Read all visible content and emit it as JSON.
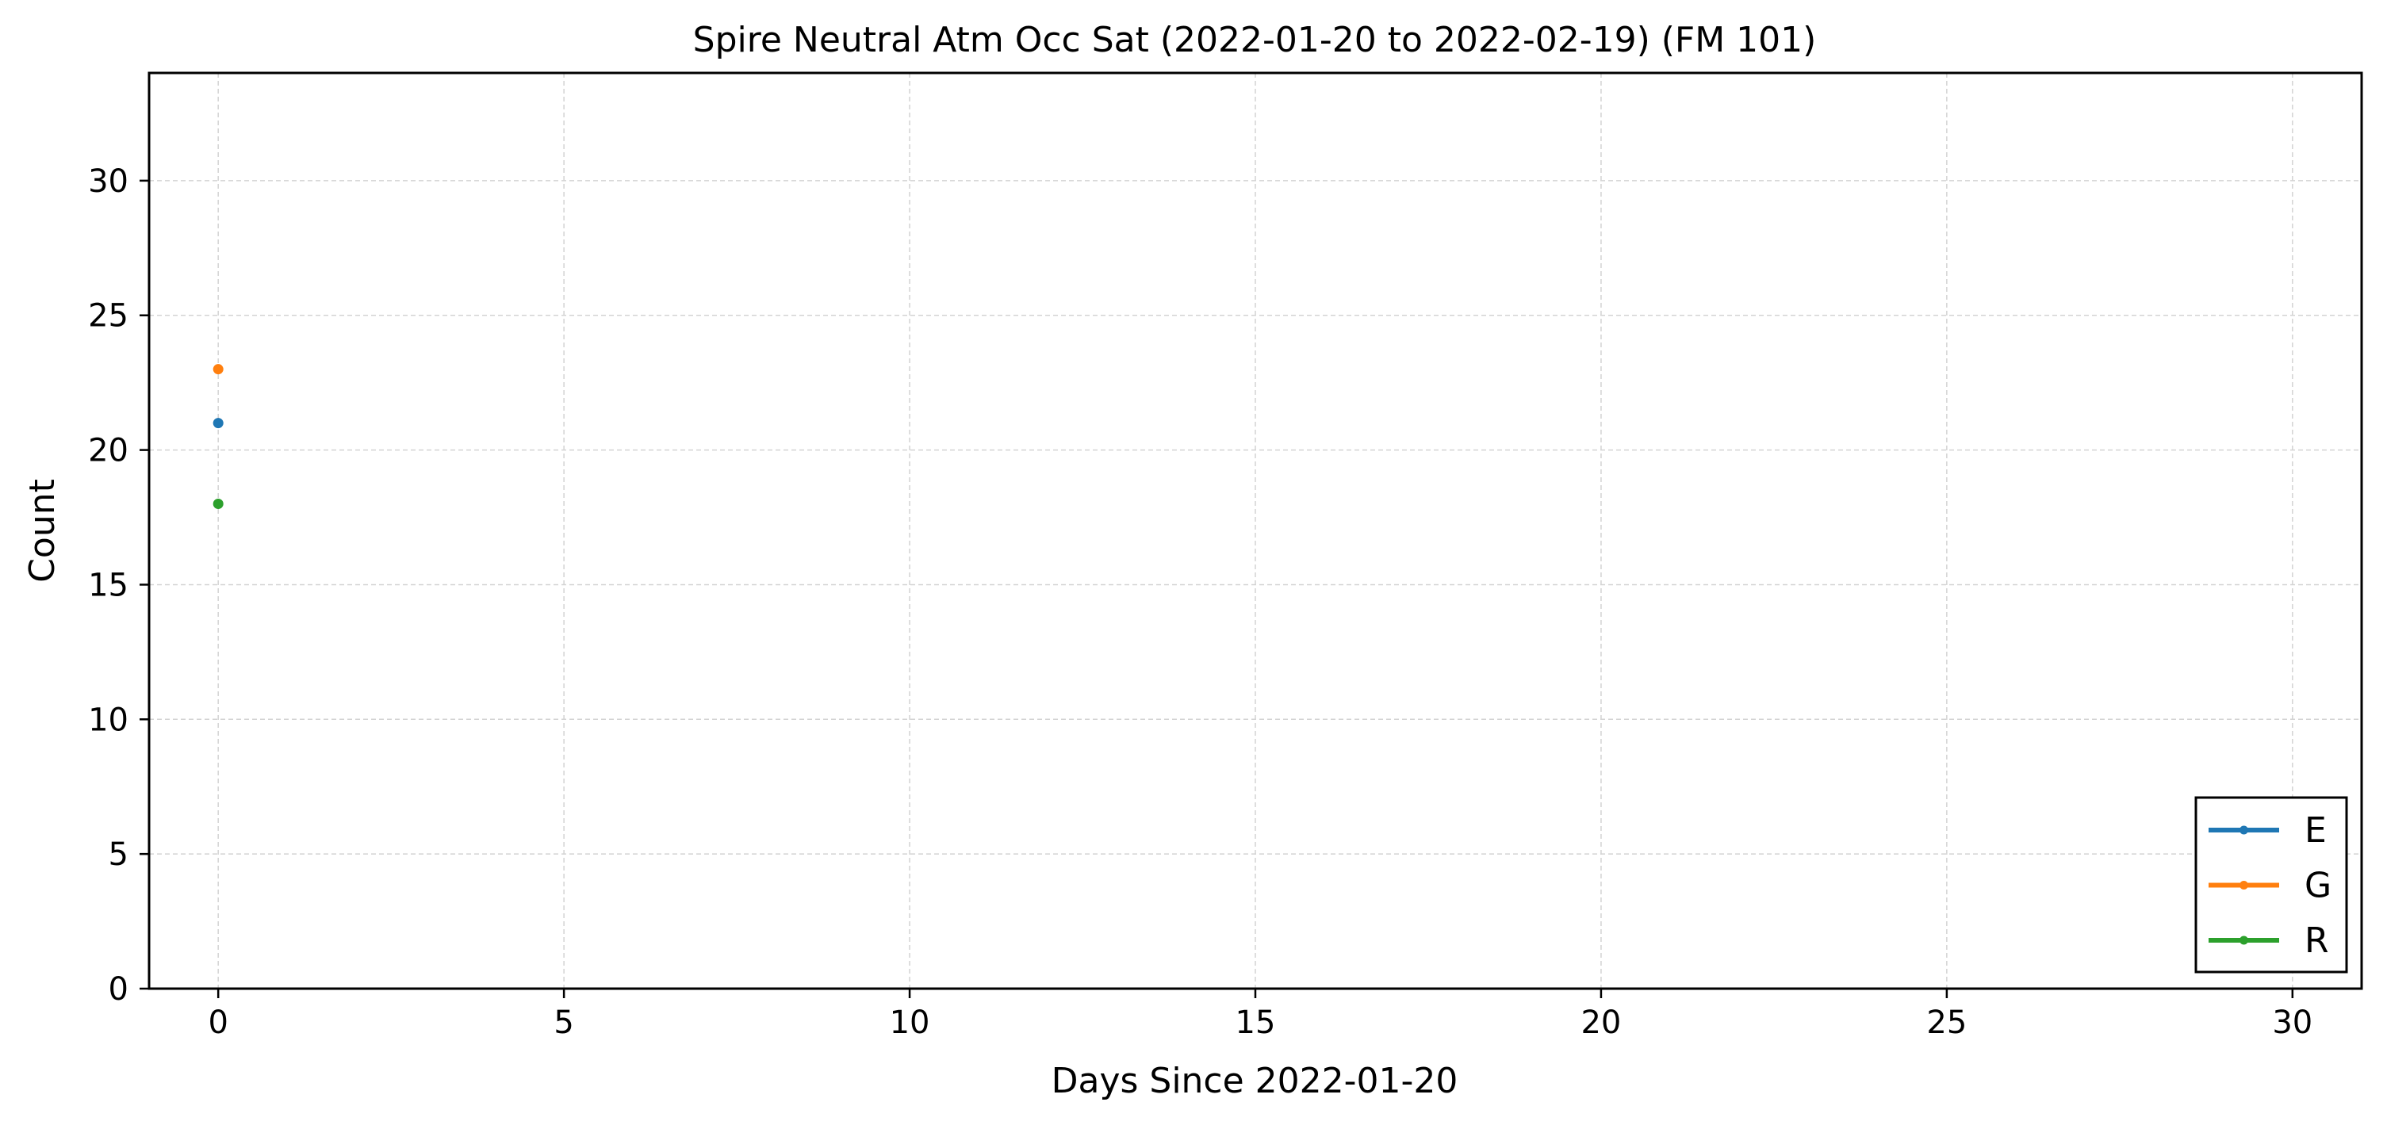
{
  "chart_data": {
    "type": "scatter",
    "title": "Spire Neutral Atm Occ Sat (2022-01-20 to 2022-02-19) (FM 101)",
    "xlabel": "Days Since 2022-01-20",
    "ylabel": "Count",
    "xlim": [
      -1,
      31
    ],
    "ylim": [
      0,
      34
    ],
    "xticks": [
      0,
      5,
      10,
      15,
      20,
      25,
      30
    ],
    "yticks": [
      0,
      5,
      10,
      15,
      20,
      25,
      30
    ],
    "grid": true,
    "legend_position": "lower-right",
    "series": [
      {
        "name": "E",
        "color": "#1f77b4",
        "x": [
          0
        ],
        "y": [
          21
        ]
      },
      {
        "name": "G",
        "color": "#ff7f0e",
        "x": [
          0
        ],
        "y": [
          23
        ]
      },
      {
        "name": "R",
        "color": "#2ca02c",
        "x": [
          0
        ],
        "y": [
          18
        ]
      }
    ]
  }
}
